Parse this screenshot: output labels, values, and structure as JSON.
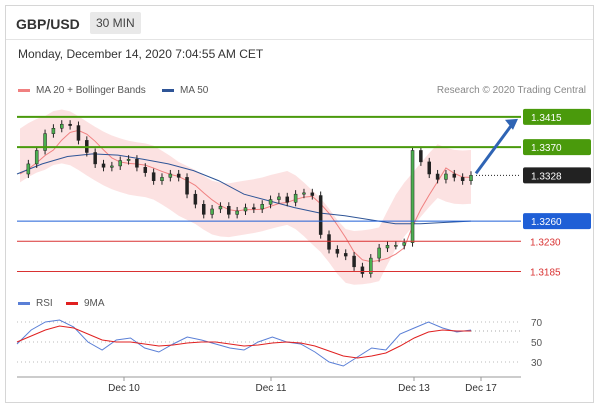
{
  "header": {
    "pair": "GBP/USD",
    "timeframe": "30 MIN"
  },
  "datetime": "Monday, December 14, 2020 7:04:55 AM CET",
  "legend": [
    {
      "label": "MA 20 + Bollinger Bands",
      "color": "#f08080"
    },
    {
      "label": "MA 50",
      "color": "#2f5597"
    }
  ],
  "credit": "Research © 2020 Trading Central",
  "rsi_legend": [
    {
      "label": "RSI",
      "color": "#5a7fd6"
    },
    {
      "label": "9MA",
      "color": "#e02020"
    }
  ],
  "chart_data": [
    {
      "type": "line",
      "title": "GBP/USD 30 MIN price",
      "x_ticks": [
        "Dec 10",
        "Dec 11",
        "Dec 13",
        "Dec 17"
      ],
      "ylim": [
        1.3165,
        1.344
      ],
      "grid": false,
      "series": [
        {
          "name": "GBP/USD",
          "color": "#222222",
          "values": [
            1.333,
            1.3345,
            1.3365,
            1.339,
            1.3398,
            1.3404,
            1.3402,
            1.338,
            1.3362,
            1.3345,
            1.334,
            1.3342,
            1.335,
            1.3352,
            1.334,
            1.3332,
            1.332,
            1.3325,
            1.333,
            1.3325,
            1.33,
            1.3285,
            1.327,
            1.3278,
            1.3282,
            1.327,
            1.3275,
            1.328,
            1.3278,
            1.3285,
            1.3292,
            1.3296,
            1.3288,
            1.33,
            1.3302,
            1.3298,
            1.324,
            1.3218,
            1.3212,
            1.3208,
            1.3192,
            1.3182,
            1.3205,
            1.322,
            1.3224,
            1.3224,
            1.3228,
            1.3365,
            1.3348,
            1.333,
            1.3322,
            1.333,
            1.3325,
            1.332,
            1.3328
          ]
        },
        {
          "name": "MA 50",
          "color": "#2f5597",
          "values": [
            1.333,
            1.3345,
            1.3356,
            1.336,
            1.3358,
            1.3352,
            1.3345,
            1.3335,
            1.332,
            1.33,
            1.329,
            1.328,
            1.3272,
            1.3268,
            1.3262,
            1.3256,
            1.3256,
            1.3258,
            1.326
          ]
        }
      ],
      "levels": [
        {
          "value": 1.3415,
          "label": "1.3415",
          "type": "resistance",
          "color": "#4a9a0c"
        },
        {
          "value": 1.337,
          "label": "1.3370",
          "type": "resistance",
          "color": "#4a9a0c"
        },
        {
          "value": 1.3328,
          "label": "1.3328",
          "type": "last",
          "color": "#222222"
        },
        {
          "value": 1.326,
          "label": "1.3260",
          "type": "pivot",
          "color": "#1f5fd6"
        },
        {
          "value": 1.323,
          "label": "1.3230",
          "type": "support",
          "color": "#d93232"
        },
        {
          "value": 1.3185,
          "label": "1.3185",
          "type": "support",
          "color": "#d93232"
        }
      ],
      "target": 1.3415
    },
    {
      "type": "line",
      "title": "RSI",
      "y_ticks": [
        70,
        50,
        30
      ],
      "ylim": [
        20,
        80
      ],
      "series": [
        {
          "name": "RSI",
          "color": "#5a7fd6",
          "values": [
            48,
            62,
            70,
            72,
            65,
            50,
            42,
            52,
            54,
            44,
            40,
            48,
            55,
            52,
            48,
            44,
            42,
            50,
            55,
            50,
            48,
            40,
            30,
            26,
            35,
            44,
            42,
            58,
            64,
            70,
            64,
            60,
            62
          ]
        },
        {
          "name": "9MA",
          "color": "#e02020",
          "values": [
            50,
            56,
            62,
            66,
            64,
            58,
            52,
            50,
            50,
            48,
            46,
            47,
            49,
            50,
            50,
            48,
            46,
            47,
            49,
            50,
            49,
            46,
            41,
            36,
            34,
            36,
            39,
            46,
            54,
            60,
            62,
            61,
            61
          ]
        }
      ]
    }
  ]
}
